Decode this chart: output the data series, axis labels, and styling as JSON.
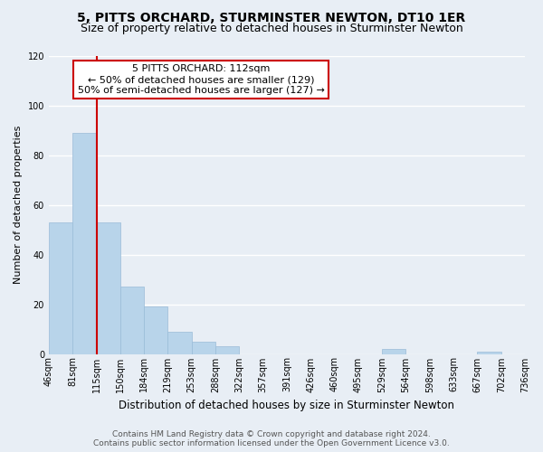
{
  "title": "5, PITTS ORCHARD, STURMINSTER NEWTON, DT10 1ER",
  "subtitle": "Size of property relative to detached houses in Sturminster Newton",
  "xlabel": "Distribution of detached houses by size in Sturminster Newton",
  "ylabel": "Number of detached properties",
  "bar_values": [
    53,
    89,
    53,
    27,
    19,
    9,
    5,
    3,
    0,
    0,
    0,
    0,
    0,
    0,
    2,
    0,
    0,
    0,
    1,
    0
  ],
  "bar_labels": [
    "46sqm",
    "81sqm",
    "115sqm",
    "150sqm",
    "184sqm",
    "219sqm",
    "253sqm",
    "288sqm",
    "322sqm",
    "357sqm",
    "391sqm",
    "426sqm",
    "460sqm",
    "495sqm",
    "529sqm",
    "564sqm",
    "598sqm",
    "633sqm",
    "667sqm",
    "702sqm",
    "736sqm"
  ],
  "bar_color": "#b8d4ea",
  "bar_edge_color": "#9abcd8",
  "red_line_x": 2,
  "annotation_line1": "5 PITTS ORCHARD: 112sqm",
  "annotation_line2": "← 50% of detached houses are smaller (129)",
  "annotation_line3": "50% of semi-detached houses are larger (127) →",
  "annotation_box_color": "#ffffff",
  "annotation_box_edge_color": "#cc0000",
  "ylim": [
    0,
    120
  ],
  "yticks": [
    0,
    20,
    40,
    60,
    80,
    100,
    120
  ],
  "footer_line1": "Contains HM Land Registry data © Crown copyright and database right 2024.",
  "footer_line2": "Contains public sector information licensed under the Open Government Licence v3.0.",
  "background_color": "#e8eef5",
  "plot_bg_color": "#e8eef5",
  "grid_color": "#ffffff",
  "title_fontsize": 10,
  "subtitle_fontsize": 9,
  "xlabel_fontsize": 8.5,
  "ylabel_fontsize": 8,
  "tick_fontsize": 7,
  "footer_fontsize": 6.5
}
